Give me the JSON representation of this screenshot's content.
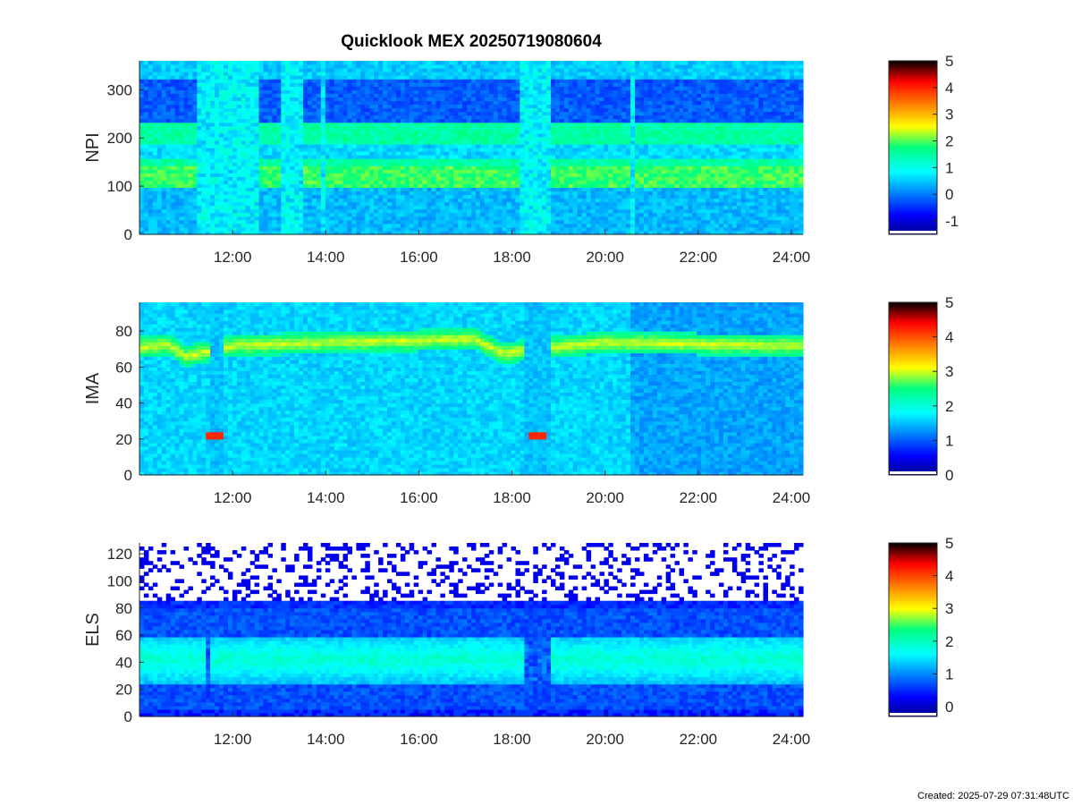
{
  "title": "Quicklook MEX 20250719080604",
  "footer": "Created: 2025-07-29 07:31:48UTC",
  "chart_data": [
    {
      "type": "heatmap",
      "ylabel": "NPI",
      "xlim_hours": [
        10.0,
        24.25
      ],
      "x_ticks": [
        "12:00",
        "14:00",
        "16:00",
        "18:00",
        "20:00",
        "22:00",
        "24:00"
      ],
      "ylim": [
        0,
        360
      ],
      "y_ticks": [
        0,
        100,
        200,
        300
      ],
      "colorbar": {
        "min": -1.5,
        "max": 5,
        "ticks": [
          -1,
          0,
          1,
          2,
          3,
          4,
          5
        ]
      },
      "bands": [
        {
          "y": [
            0,
            95
          ],
          "value": 0.4
        },
        {
          "y": [
            95,
            140
          ],
          "value": 1.9
        },
        {
          "y": [
            140,
            160
          ],
          "value": 1.5
        },
        {
          "y": [
            160,
            185
          ],
          "value": 0.6
        },
        {
          "y": [
            185,
            230
          ],
          "value": 1.5
        },
        {
          "y": [
            230,
            325
          ],
          "value": -0.2
        },
        {
          "y": [
            325,
            360
          ],
          "value": 0.5
        }
      ],
      "dimmed_intervals": [
        [
          11.2,
          12.6
        ],
        [
          13.0,
          13.5
        ],
        [
          13.9,
          14.0
        ],
        [
          18.2,
          18.8
        ],
        [
          20.5,
          20.6
        ]
      ]
    },
    {
      "type": "heatmap",
      "ylabel": "IMA",
      "xlim_hours": [
        10.0,
        24.25
      ],
      "x_ticks": [
        "12:00",
        "14:00",
        "16:00",
        "18:00",
        "20:00",
        "22:00",
        "24:00"
      ],
      "ylim": [
        0,
        96
      ],
      "y_ticks": [
        0,
        20,
        40,
        60,
        80
      ],
      "colorbar": {
        "min": 0,
        "max": 5,
        "ticks": [
          0,
          1,
          2,
          3,
          4,
          5
        ]
      },
      "background_value": 1.6,
      "ridge": [
        {
          "x": 10.0,
          "y": 71
        },
        {
          "x": 10.6,
          "y": 73
        },
        {
          "x": 11.0,
          "y": 66
        },
        {
          "x": 12.0,
          "y": 72
        },
        {
          "x": 14.0,
          "y": 74
        },
        {
          "x": 16.0,
          "y": 75
        },
        {
          "x": 17.2,
          "y": 76
        },
        {
          "x": 17.8,
          "y": 68
        },
        {
          "x": 19.2,
          "y": 72
        },
        {
          "x": 20.0,
          "y": 74
        },
        {
          "x": 24.0,
          "y": 72
        }
      ],
      "ridge_value": 3.0,
      "hot_spots": [
        {
          "x": [
            11.45,
            11.8
          ],
          "y": [
            20,
            24
          ],
          "value": 4.2
        },
        {
          "x": [
            18.35,
            18.7
          ],
          "y": [
            20,
            24
          ],
          "value": 4.2
        }
      ],
      "gaps": [
        [
          11.5,
          11.8
        ],
        [
          18.3,
          18.8
        ]
      ]
    },
    {
      "type": "heatmap",
      "ylabel": "ELS",
      "xlim_hours": [
        10.0,
        24.25
      ],
      "x_ticks": [
        "12:00",
        "14:00",
        "16:00",
        "18:00",
        "20:00",
        "22:00",
        "24:00"
      ],
      "ylim": [
        0,
        128
      ],
      "y_ticks": [
        0,
        20,
        40,
        60,
        80,
        100,
        120
      ],
      "colorbar": {
        "min": -0.3,
        "max": 5,
        "ticks": [
          0,
          1,
          2,
          3,
          4,
          5
        ]
      },
      "core": [
        {
          "y": [
            25,
            60
          ],
          "value": 1.9
        }
      ],
      "upper_edge": 80,
      "noise_above": 85,
      "dips": [
        [
          11.4,
          11.5
        ],
        [
          18.3,
          18.8
        ]
      ]
    }
  ]
}
